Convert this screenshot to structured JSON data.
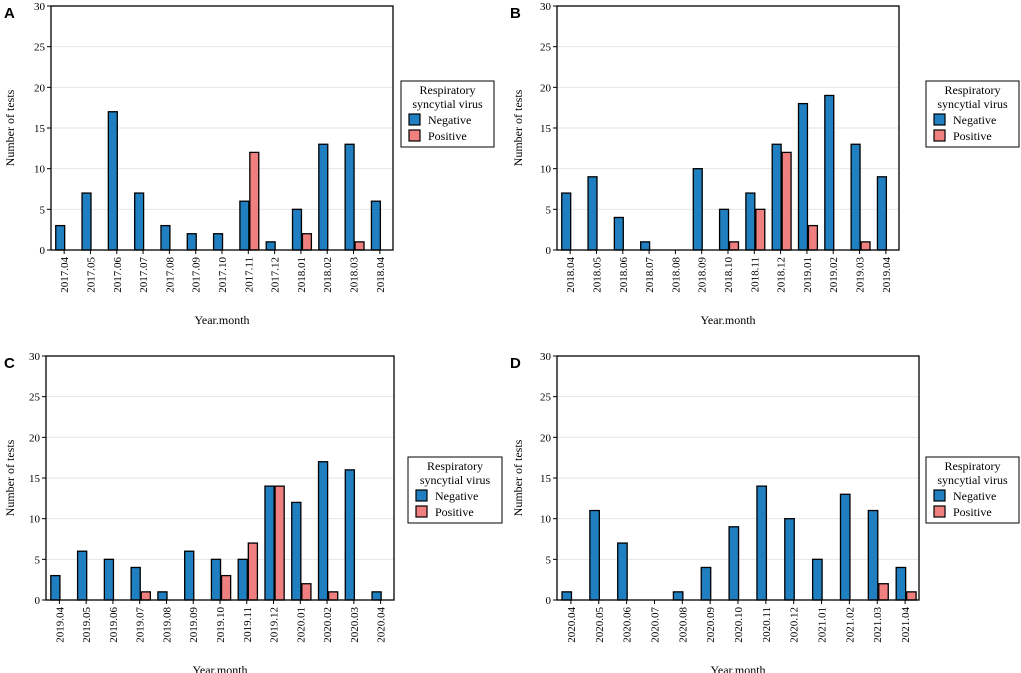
{
  "colors": {
    "negative": "#1f7fc0",
    "positive": "#f08080",
    "grid": "#e6e6e6",
    "frame": "#000000"
  },
  "chart_data": [
    {
      "type": "bar",
      "panel": "A",
      "title": "",
      "xlabel": "Year.month",
      "ylabel": "Number of tests",
      "ylim": [
        0,
        30
      ],
      "yticks": [
        0,
        5,
        10,
        15,
        20,
        25,
        30
      ],
      "grid": true,
      "legend_title": [
        "Respiratory",
        "syncytial virus"
      ],
      "legend_position": "right",
      "categories": [
        "2017.04",
        "2017.05",
        "2017.06",
        "2017.07",
        "2017.08",
        "2017.09",
        "2017.10",
        "2017.11",
        "2017.12",
        "2018.01",
        "2018.02",
        "2018.03",
        "2018.04"
      ],
      "series": [
        {
          "name": "Negative",
          "values": [
            3,
            7,
            17,
            7,
            3,
            2,
            2,
            6,
            1,
            5,
            13,
            13,
            6
          ]
        },
        {
          "name": "Positive",
          "values": [
            0,
            0,
            0,
            0,
            0,
            0,
            0,
            12,
            0,
            2,
            0,
            1,
            0
          ]
        }
      ]
    },
    {
      "type": "bar",
      "panel": "B",
      "title": "",
      "xlabel": "Year.month",
      "ylabel": "Number of tests",
      "ylim": [
        0,
        30
      ],
      "yticks": [
        0,
        5,
        10,
        15,
        20,
        25,
        30
      ],
      "grid": true,
      "legend_title": [
        "Respiratory",
        "syncytial virus"
      ],
      "legend_position": "right",
      "categories": [
        "2018.04",
        "2018.05",
        "2018.06",
        "2018.07",
        "2018.08",
        "2018.09",
        "2018.10",
        "2018.11",
        "2018.12",
        "2019.01",
        "2019.02",
        "2019.03",
        "2019.04"
      ],
      "series": [
        {
          "name": "Negative",
          "values": [
            7,
            9,
            4,
            1,
            0,
            10,
            5,
            7,
            13,
            18,
            19,
            13,
            9
          ]
        },
        {
          "name": "Positive",
          "values": [
            0,
            0,
            0,
            0,
            0,
            0,
            1,
            5,
            12,
            3,
            0,
            1,
            0
          ]
        }
      ]
    },
    {
      "type": "bar",
      "panel": "C",
      "title": "",
      "xlabel": "Year.month",
      "ylabel": "Number of tests",
      "ylim": [
        0,
        30
      ],
      "yticks": [
        0,
        5,
        10,
        15,
        20,
        25,
        30
      ],
      "grid": true,
      "legend_title": [
        "Respiratory",
        "syncytial virus"
      ],
      "legend_position": "right",
      "categories": [
        "2019.04",
        "2019.05",
        "2019.06",
        "2019.07",
        "2019.08",
        "2019.09",
        "2019.10",
        "2019.11",
        "2019.12",
        "2020.01",
        "2020.02",
        "2020.03",
        "2020.04"
      ],
      "series": [
        {
          "name": "Negative",
          "values": [
            3,
            6,
            5,
            4,
            1,
            6,
            5,
            5,
            14,
            12,
            17,
            16,
            1
          ]
        },
        {
          "name": "Positive",
          "values": [
            0,
            0,
            0,
            1,
            0,
            0,
            3,
            7,
            14,
            2,
            1,
            0,
            0
          ]
        }
      ]
    },
    {
      "type": "bar",
      "panel": "D",
      "title": "",
      "xlabel": "Year.month",
      "ylabel": "Number of tests",
      "ylim": [
        0,
        30
      ],
      "yticks": [
        0,
        5,
        10,
        15,
        20,
        25,
        30
      ],
      "grid": true,
      "legend_title": [
        "Respiratory",
        "syncytial virus"
      ],
      "legend_position": "right",
      "categories": [
        "2020.04",
        "2020.05",
        "2020.06",
        "2020.07",
        "2020.08",
        "2020.09",
        "2020.10",
        "2020.11",
        "2020.12",
        "2021.01",
        "2021.02",
        "2021.03",
        "2021.04"
      ],
      "series": [
        {
          "name": "Negative",
          "values": [
            1,
            11,
            7,
            0,
            1,
            4,
            9,
            14,
            10,
            5,
            13,
            11,
            4
          ]
        },
        {
          "name": "Positive",
          "values": [
            0,
            0,
            0,
            0,
            0,
            0,
            0,
            0,
            0,
            0,
            0,
            2,
            1
          ]
        }
      ]
    }
  ]
}
